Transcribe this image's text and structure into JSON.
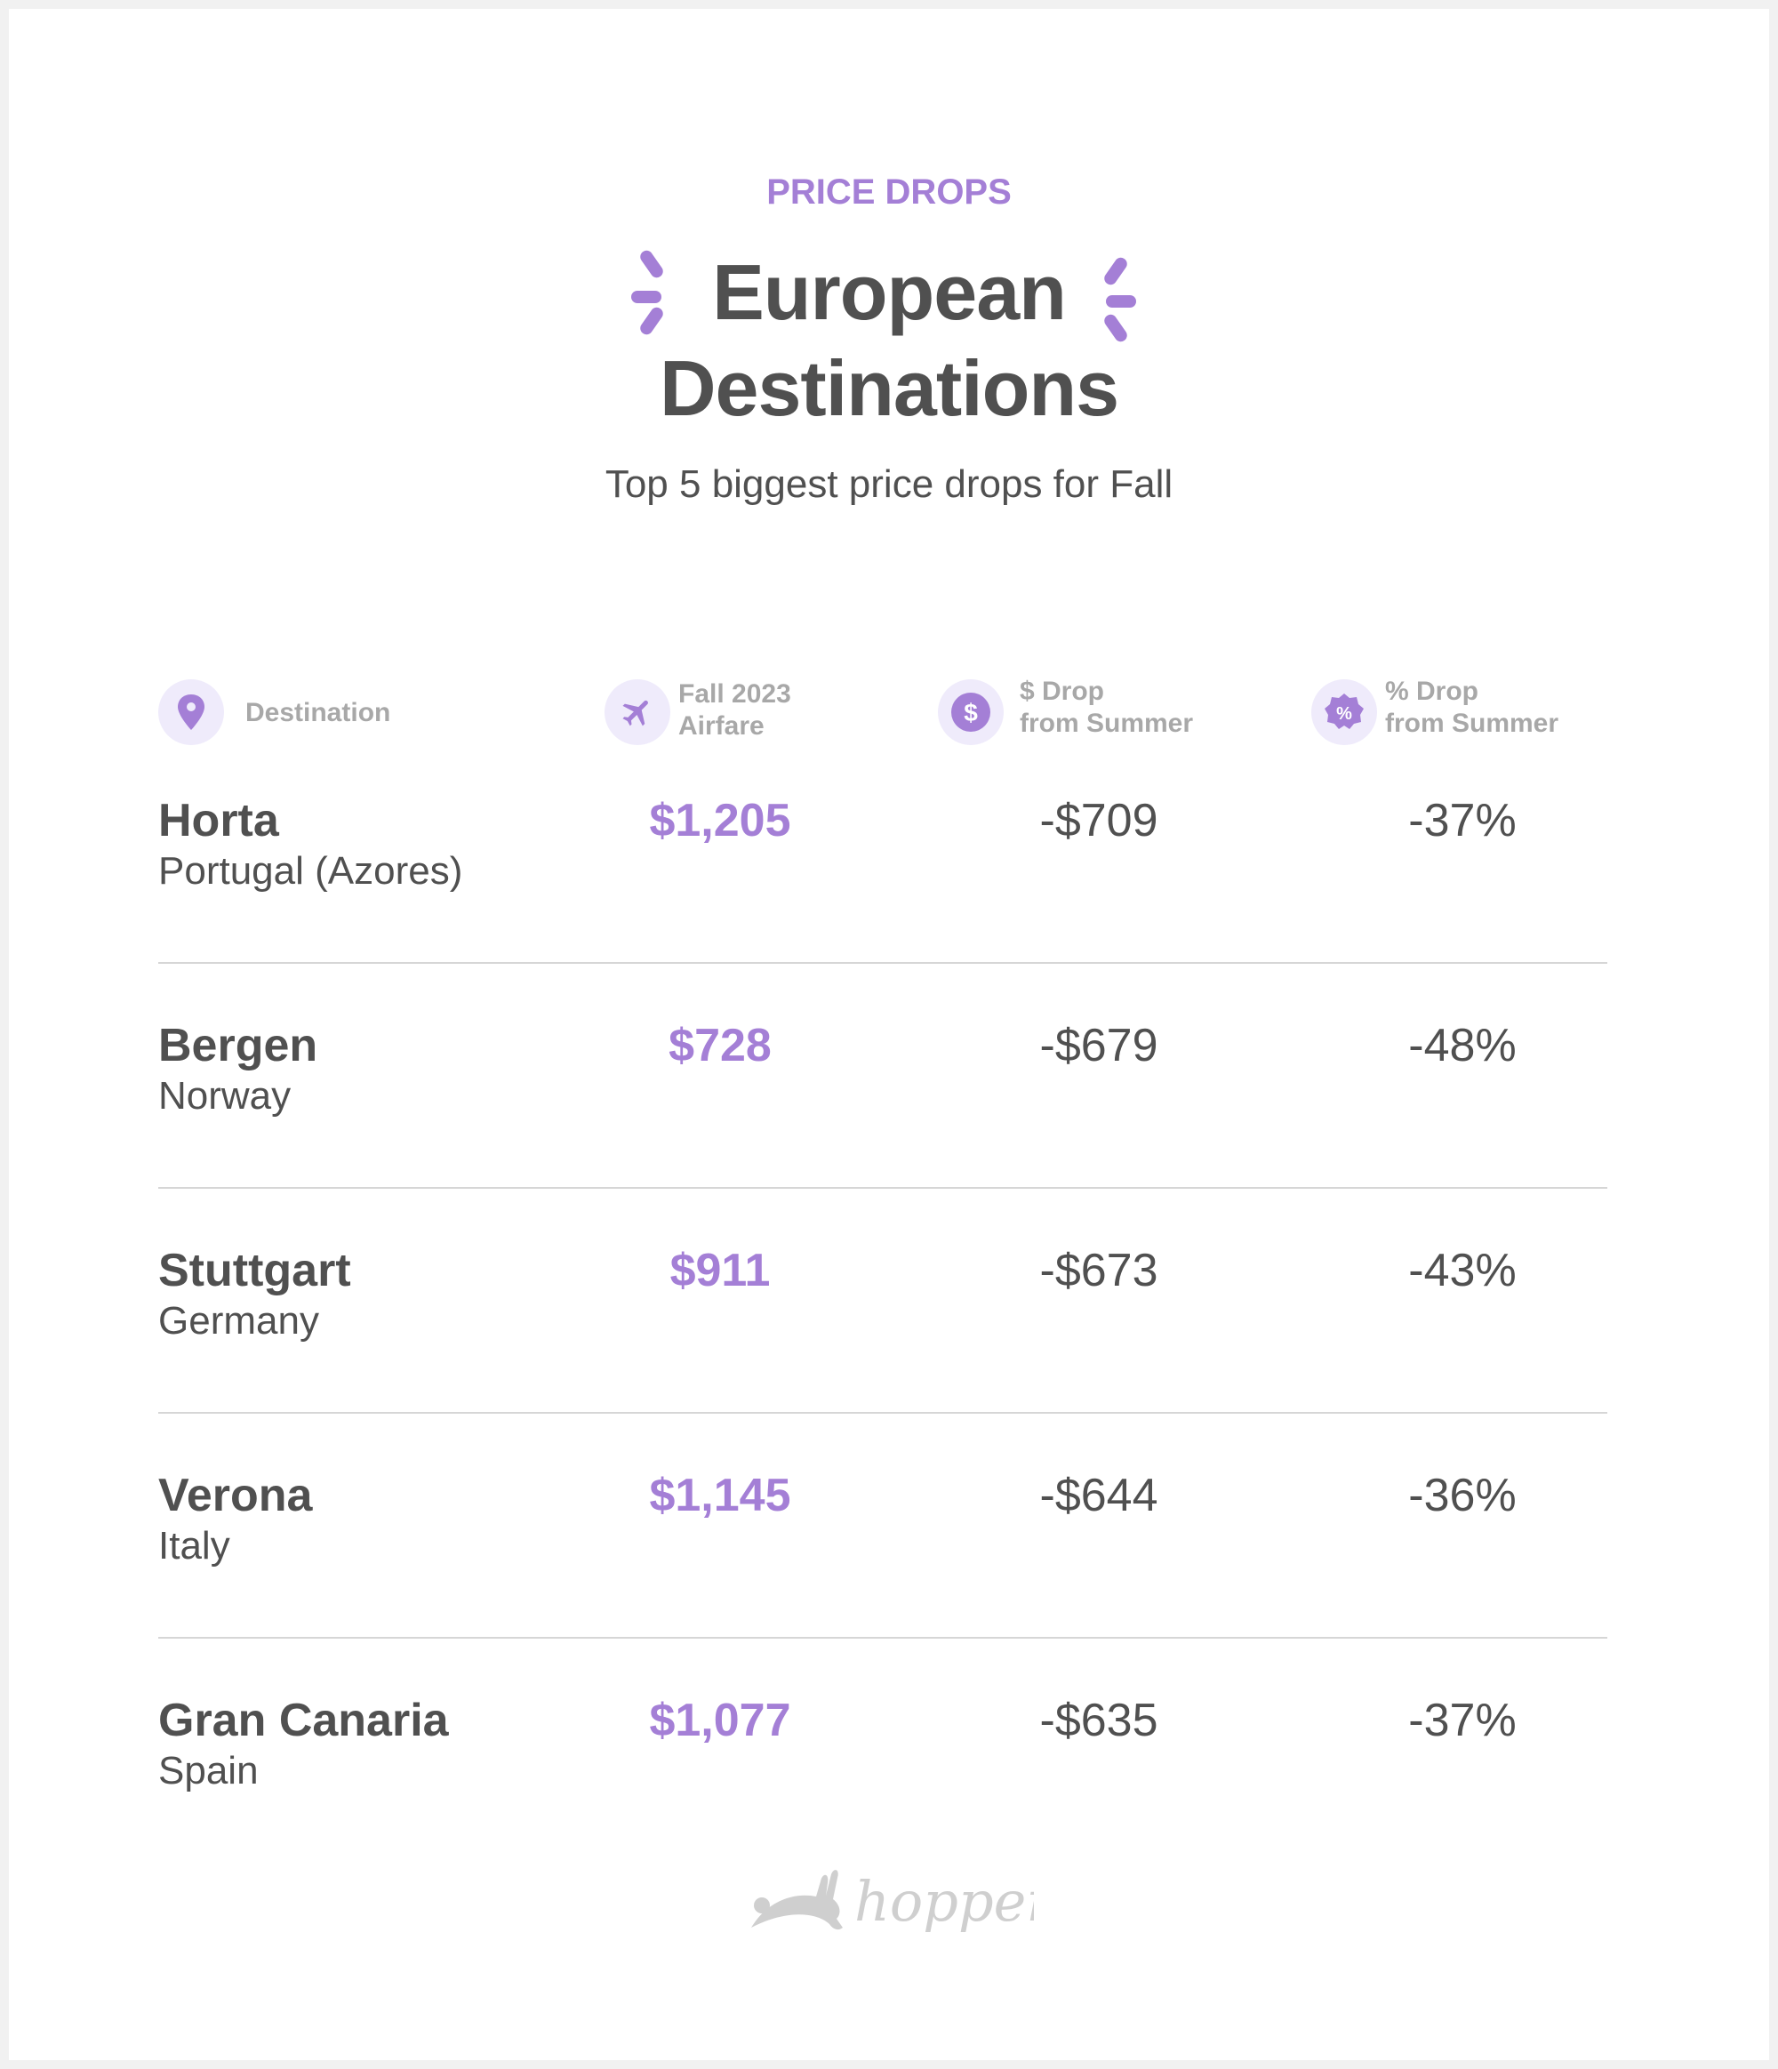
{
  "kicker": "PRICE DROPS",
  "title": {
    "line1": "European",
    "line2": "Destinations"
  },
  "subtitle": "Top 5 biggest price drops for Fall",
  "columns": [
    {
      "icon": "map-pin-icon",
      "label1": "Destination",
      "label2": ""
    },
    {
      "icon": "airplane-icon",
      "label1": "Fall 2023",
      "label2": "Airfare"
    },
    {
      "icon": "dollar-icon",
      "label1": "$ Drop",
      "label2": "from Summer"
    },
    {
      "icon": "percent-badge-icon",
      "label1": "% Drop",
      "label2": "from Summer"
    }
  ],
  "rows": [
    {
      "city": "Horta",
      "country": "Portugal (Azores)",
      "fare": "$1,205",
      "drop": "-$709",
      "pct": "-37%"
    },
    {
      "city": "Bergen",
      "country": "Norway",
      "fare": "$728",
      "drop": "-$679",
      "pct": "-48%"
    },
    {
      "city": "Stuttgart",
      "country": "Germany",
      "fare": "$911",
      "drop": "-$673",
      "pct": "-43%"
    },
    {
      "city": "Verona",
      "country": "Italy",
      "fare": "$1,145",
      "drop": "-$644",
      "pct": "-36%"
    },
    {
      "city": "Gran Canaria",
      "country": "Spain",
      "fare": "$1,077",
      "drop": "-$635",
      "pct": "-37%"
    }
  ],
  "logo": "hopper",
  "colors": {
    "accent": "#a47fd6",
    "text": "#505050",
    "muted": "#a8a8a8"
  }
}
